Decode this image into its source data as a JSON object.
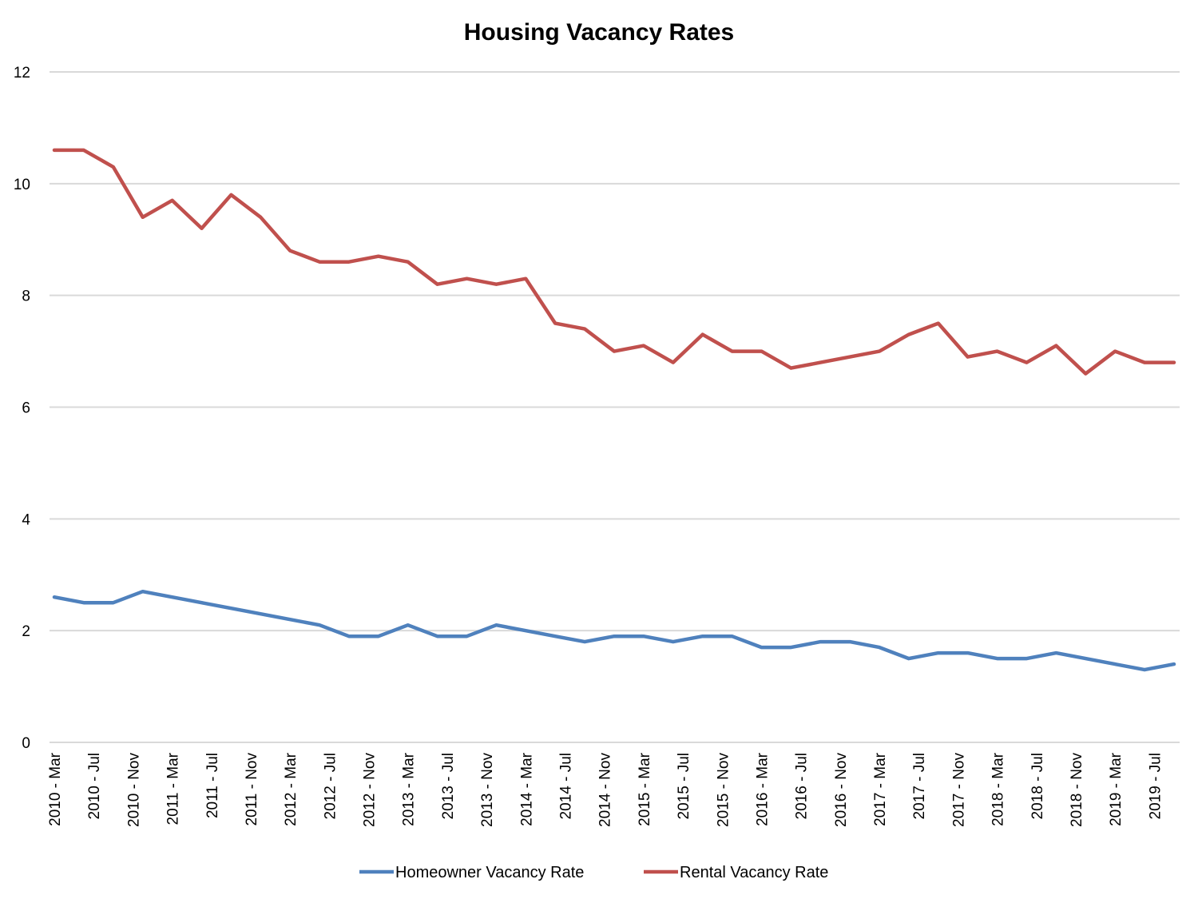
{
  "chart_data": {
    "type": "line",
    "title": "Housing Vacancy Rates",
    "xlabel": "",
    "ylabel": "",
    "ylim": [
      0,
      12
    ],
    "yticks": [
      0,
      2,
      4,
      6,
      8,
      10,
      12
    ],
    "grid": true,
    "legend": "bottom",
    "x_tick_labels": [
      "2010 - Mar",
      "2010 - Jul",
      "2010 - Nov",
      "2011 - Mar",
      "2011 - Jul",
      "2011 - Nov",
      "2012 - Mar",
      "2012 - Jul",
      "2012 - Nov",
      "2013 - Mar",
      "2013 - Jul",
      "2013 - Nov",
      "2014 - Mar",
      "2014 - Jul",
      "2014 - Nov",
      "2015 - Mar",
      "2015 - Jul",
      "2015 - Nov",
      "2016 - Mar",
      "2016 - Jul",
      "2016 - Nov",
      "2017 - Mar",
      "2017 - Jul",
      "2017 - Nov",
      "2018 - Mar",
      "2018 - Jul",
      "2018 - Nov",
      "2019 - Mar",
      "2019 - Jul"
    ],
    "series": [
      {
        "name": "Homeowner Vacancy Rate",
        "color": "#4f81bd",
        "values": [
          2.6,
          2.5,
          2.5,
          2.7,
          2.6,
          2.5,
          2.4,
          2.3,
          2.2,
          2.1,
          1.9,
          1.9,
          2.1,
          1.9,
          1.9,
          2.1,
          2.0,
          1.9,
          1.8,
          1.9,
          1.9,
          1.8,
          1.9,
          1.9,
          1.7,
          1.7,
          1.8,
          1.8,
          1.7,
          1.5,
          1.6,
          1.6,
          1.5,
          1.5,
          1.6,
          1.5,
          1.4,
          1.3,
          1.4
        ]
      },
      {
        "name": "Rental Vacancy Rate",
        "color": "#c0504d",
        "values": [
          10.6,
          10.6,
          10.3,
          9.4,
          9.7,
          9.2,
          9.8,
          9.4,
          8.8,
          8.6,
          8.6,
          8.7,
          8.6,
          8.2,
          8.3,
          8.2,
          8.3,
          7.5,
          7.4,
          7.0,
          7.1,
          6.8,
          7.3,
          7.0,
          7.0,
          6.7,
          6.8,
          6.9,
          7.0,
          7.3,
          7.5,
          6.9,
          7.0,
          6.8,
          7.1,
          6.6,
          7.0,
          6.8,
          6.8
        ]
      }
    ]
  }
}
